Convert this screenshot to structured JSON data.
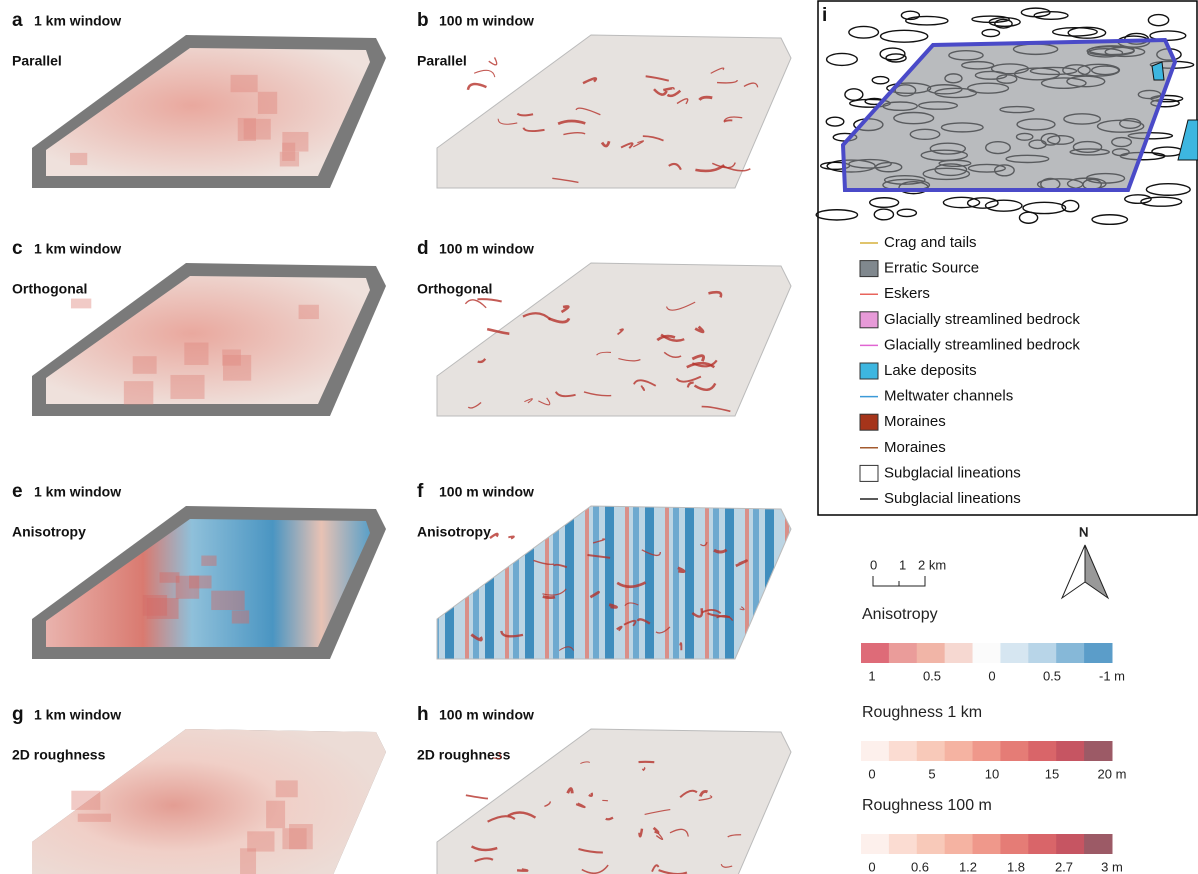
{
  "panels": [
    {
      "letter": "a",
      "window": "1 km window",
      "subtitle": "Parallel"
    },
    {
      "letter": "b",
      "window": "100 m window",
      "subtitle": "Parallel"
    },
    {
      "letter": "c",
      "window": "1 km window",
      "subtitle": "Orthogonal"
    },
    {
      "letter": "d",
      "window": "100 m window",
      "subtitle": "Orthogonal"
    },
    {
      "letter": "e",
      "window": "1 km window",
      "subtitle": "Anisotropy"
    },
    {
      "letter": "f",
      "window": "100 m window",
      "subtitle": "Anisotropy"
    },
    {
      "letter": "g",
      "window": "1 km window",
      "subtitle": "2D roughness"
    },
    {
      "letter": "h",
      "window": "100 m window",
      "subtitle": "2D roughness"
    }
  ],
  "map_panel": {
    "letter": "i",
    "legend": [
      "Crag and tails",
      "Erratic Source",
      "Eskers",
      "Glacially streamlined bedrock",
      "Glacially streamlined bedrock",
      "Lake deposits",
      "Meltwater channels",
      "Moraines",
      "Moraines",
      "Subglacial lineations",
      "Subglacial lineations"
    ]
  },
  "scale_bar": [
    "0",
    "1",
    "2 km"
  ],
  "north": "N",
  "color_scales": [
    {
      "title": "Anisotropy",
      "labels": [
        "1",
        "0.5",
        "0",
        "0.5",
        "-1 m"
      ]
    },
    {
      "title": "Roughness 1 km",
      "labels": [
        "0",
        "5",
        "10",
        "15",
        "20 m"
      ]
    },
    {
      "title": "Roughness 100 m",
      "labels": [
        "0",
        "0.6",
        "1.2",
        "1.8",
        "2.7",
        "3 m"
      ]
    }
  ]
}
